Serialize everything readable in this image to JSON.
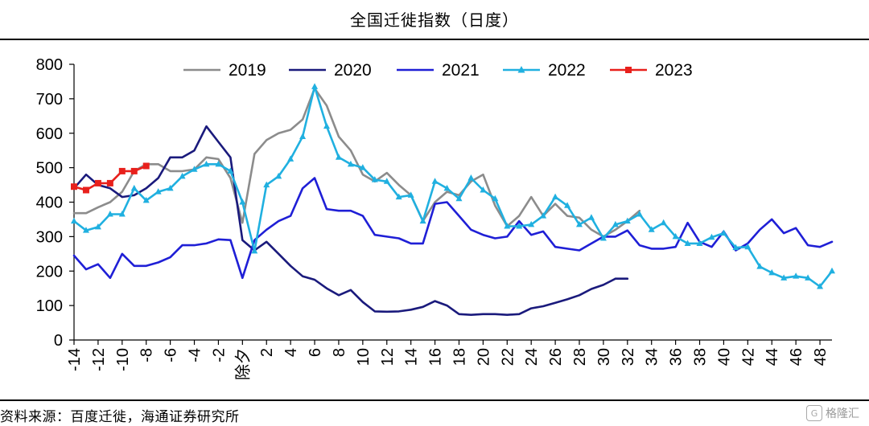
{
  "title": "全国迁徙指数（日度）",
  "source": "资料来源：百度迁徙，海通证券研究所",
  "watermark": "格隆汇",
  "chart_data": {
    "type": "line",
    "title": "全国迁徙指数（日度）",
    "xlabel": "",
    "ylabel": "",
    "ylim": [
      0,
      800
    ],
    "xlim": [
      -14,
      49
    ],
    "yticks": [
      0,
      100,
      200,
      300,
      400,
      500,
      600,
      700,
      800
    ],
    "xticks": [
      {
        "x": -14,
        "label": "-14"
      },
      {
        "x": -12,
        "label": "-12"
      },
      {
        "x": -10,
        "label": "-10"
      },
      {
        "x": -8,
        "label": "-8"
      },
      {
        "x": -6,
        "label": "-6"
      },
      {
        "x": -4,
        "label": "-4"
      },
      {
        "x": -2,
        "label": "-2"
      },
      {
        "x": 0,
        "label": "除夕"
      },
      {
        "x": 2,
        "label": "2"
      },
      {
        "x": 4,
        "label": "4"
      },
      {
        "x": 6,
        "label": "6"
      },
      {
        "x": 8,
        "label": "8"
      },
      {
        "x": 10,
        "label": "10"
      },
      {
        "x": 12,
        "label": "12"
      },
      {
        "x": 14,
        "label": "14"
      },
      {
        "x": 16,
        "label": "16"
      },
      {
        "x": 18,
        "label": "18"
      },
      {
        "x": 20,
        "label": "20"
      },
      {
        "x": 22,
        "label": "22"
      },
      {
        "x": 24,
        "label": "24"
      },
      {
        "x": 26,
        "label": "26"
      },
      {
        "x": 28,
        "label": "28"
      },
      {
        "x": 30,
        "label": "30"
      },
      {
        "x": 32,
        "label": "32"
      },
      {
        "x": 34,
        "label": "34"
      },
      {
        "x": 36,
        "label": "36"
      },
      {
        "x": 38,
        "label": "38"
      },
      {
        "x": 40,
        "label": "40"
      },
      {
        "x": 42,
        "label": "42"
      },
      {
        "x": 44,
        "label": "44"
      },
      {
        "x": 46,
        "label": "46"
      },
      {
        "x": 48,
        "label": "48"
      }
    ],
    "legend_position": "top",
    "series": [
      {
        "name": "2019",
        "color": "#8c8c8c",
        "marker": "none",
        "x": [
          -14,
          -13,
          -12,
          -11,
          -10,
          -9,
          -8,
          -7,
          -6,
          -5,
          -4,
          -3,
          -2,
          -1,
          0,
          1,
          2,
          3,
          4,
          5,
          6,
          7,
          8,
          9,
          10,
          11,
          12,
          13,
          14,
          15,
          16,
          17,
          18,
          19,
          20,
          21,
          22,
          23,
          24,
          25,
          26,
          27,
          28,
          29,
          30,
          31,
          32,
          33
        ],
        "y": [
          368,
          368,
          385,
          400,
          430,
          490,
          510,
          510,
          490,
          490,
          495,
          530,
          525,
          470,
          340,
          540,
          580,
          600,
          610,
          640,
          730,
          680,
          590,
          550,
          480,
          460,
          485,
          450,
          420,
          345,
          400,
          430,
          420,
          460,
          480,
          390,
          330,
          360,
          415,
          360,
          395,
          360,
          355,
          320,
          300,
          320,
          345,
          375
        ]
      },
      {
        "name": "2020",
        "color": "#1a1a7c",
        "marker": "none",
        "x": [
          -14,
          -13,
          -12,
          -11,
          -10,
          -9,
          -8,
          -7,
          -6,
          -5,
          -4,
          -3,
          -2,
          -1,
          0,
          1,
          2,
          3,
          4,
          5,
          6,
          7,
          8,
          9,
          10,
          11,
          12,
          13,
          14,
          15,
          16,
          17,
          18,
          19,
          20,
          21,
          22,
          23,
          24,
          25,
          26,
          27,
          28,
          29,
          30,
          31,
          32
        ],
        "y": [
          440,
          480,
          450,
          440,
          415,
          420,
          440,
          470,
          530,
          530,
          550,
          620,
          575,
          530,
          290,
          260,
          285,
          250,
          215,
          185,
          175,
          150,
          130,
          145,
          110,
          83,
          82,
          83,
          88,
          96,
          113,
          100,
          75,
          73,
          75,
          75,
          73,
          75,
          92,
          98,
          108,
          118,
          130,
          148,
          160,
          178,
          178
        ]
      },
      {
        "name": "2021",
        "color": "#1f1fd6",
        "marker": "none",
        "x": [
          -14,
          -13,
          -12,
          -11,
          -10,
          -9,
          -8,
          -7,
          -6,
          -5,
          -4,
          -3,
          -2,
          -1,
          0,
          1,
          2,
          3,
          4,
          5,
          6,
          7,
          8,
          9,
          10,
          11,
          12,
          13,
          14,
          15,
          16,
          17,
          18,
          19,
          20,
          21,
          22,
          23,
          24,
          25,
          26,
          27,
          28,
          29,
          30,
          31,
          32,
          33,
          34,
          35,
          36,
          37,
          38,
          39,
          40,
          41,
          42,
          43,
          44,
          45,
          46,
          47,
          48,
          49
        ],
        "y": [
          245,
          205,
          220,
          180,
          250,
          215,
          215,
          225,
          240,
          275,
          275,
          280,
          292,
          290,
          180,
          290,
          320,
          345,
          360,
          440,
          470,
          380,
          375,
          375,
          360,
          305,
          300,
          295,
          280,
          280,
          395,
          400,
          360,
          320,
          305,
          295,
          300,
          345,
          305,
          315,
          270,
          265,
          260,
          280,
          300,
          300,
          318,
          275,
          265,
          265,
          270,
          340,
          285,
          270,
          315,
          260,
          280,
          320,
          350,
          310,
          325,
          275,
          270,
          285
        ]
      },
      {
        "name": "2022",
        "color": "#20b0e0",
        "marker": "triangle",
        "x": [
          -14,
          -13,
          -12,
          -11,
          -10,
          -9,
          -8,
          -7,
          -6,
          -5,
          -4,
          -3,
          -2,
          -1,
          0,
          1,
          2,
          3,
          4,
          5,
          6,
          7,
          8,
          9,
          10,
          11,
          12,
          13,
          14,
          15,
          16,
          17,
          18,
          19,
          20,
          21,
          22,
          23,
          24,
          25,
          26,
          27,
          28,
          29,
          30,
          31,
          32,
          33,
          34,
          35,
          36,
          37,
          38,
          39,
          40,
          41,
          42,
          43,
          44,
          45,
          46,
          47,
          48,
          49
        ],
        "y": [
          345,
          318,
          328,
          365,
          365,
          440,
          405,
          430,
          440,
          475,
          495,
          510,
          510,
          490,
          400,
          258,
          450,
          475,
          525,
          590,
          735,
          620,
          530,
          510,
          500,
          465,
          460,
          415,
          420,
          345,
          460,
          440,
          410,
          470,
          435,
          410,
          330,
          330,
          335,
          360,
          415,
          390,
          335,
          355,
          295,
          335,
          345,
          365,
          320,
          340,
          300,
          280,
          280,
          298,
          310,
          268,
          270,
          213,
          195,
          180,
          185,
          180,
          155,
          200
        ]
      },
      {
        "name": "2023",
        "color": "#e8201c",
        "marker": "square",
        "x": [
          -14,
          -13,
          -12,
          -11,
          -10,
          -9,
          -8
        ],
        "y": [
          445,
          435,
          455,
          455,
          490,
          490,
          505
        ]
      }
    ]
  }
}
